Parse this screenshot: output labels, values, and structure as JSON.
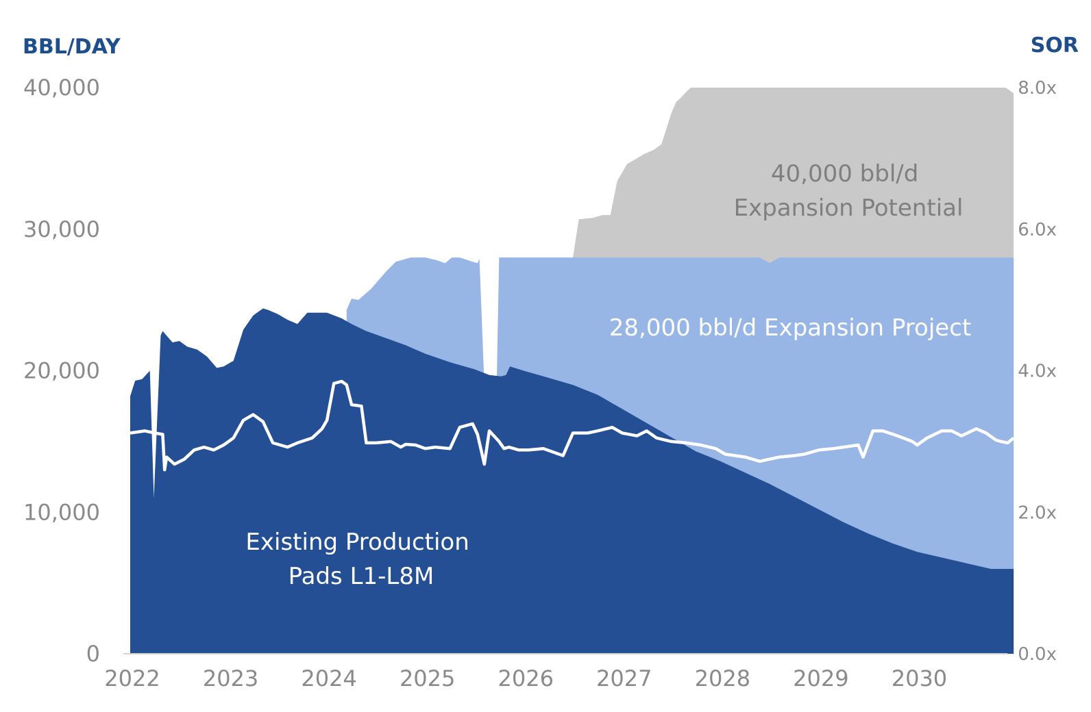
{
  "chart_data": {
    "type": "area",
    "left_axis": {
      "title": "BBL/DAY",
      "ticks": [
        "0",
        "10,000",
        "20,000",
        "30,000",
        "40,000"
      ],
      "tick_values": [
        0,
        10000,
        20000,
        30000,
        40000
      ],
      "ylim": [
        0,
        40000
      ]
    },
    "right_axis": {
      "title": "SOR",
      "ticks": [
        "0.0x",
        "2.0x",
        "4.0x",
        "6.0x",
        "8.0x"
      ],
      "tick_values": [
        0,
        2,
        4,
        6,
        8
      ],
      "ylim": [
        0,
        8
      ]
    },
    "x_axis": {
      "ticks": [
        "2022",
        "2023",
        "2024",
        "2025",
        "2026",
        "2027",
        "2028",
        "2029",
        "2030"
      ],
      "tick_values": [
        2022,
        2023,
        2024,
        2025,
        2026,
        2027,
        2028,
        2029,
        2030
      ],
      "xlim": [
        2022,
        2031
      ]
    },
    "labels": {
      "existing": [
        "Existing Production",
        "Pads L1-L8M"
      ],
      "expansion_project": [
        "28,000 bbl/d Expansion Project"
      ],
      "expansion_potential": [
        "40,000 bbl/d",
        "Expansion Potential"
      ]
    },
    "colors": {
      "existing": "#244f94",
      "expansion_project": "#97b6e5",
      "expansion_potential": "#c9c9c9",
      "sor_line": "#ffffff",
      "axis_title": "#1f4e8c",
      "tick_text": "#8a8a8a",
      "axis_line": "#d6d6d6"
    },
    "series": [
      {
        "name": "Existing Production Pads L1-L8M",
        "axis": "left",
        "x": [
          2022.0,
          2022.05,
          2022.12,
          2022.2,
          2022.24,
          2022.31,
          2022.33,
          2022.43,
          2022.5,
          2022.58,
          2022.68,
          2022.78,
          2022.88,
          2022.95,
          2023.05,
          2023.15,
          2023.25,
          2023.35,
          2023.4,
          2023.5,
          2023.6,
          2023.7,
          2023.8,
          2023.9,
          2024.0,
          2024.15,
          2024.25,
          2024.4,
          2024.6,
          2024.8,
          2025.0,
          2025.25,
          2025.5,
          2025.65,
          2025.77,
          2025.82,
          2025.86,
          2026.0,
          2026.25,
          2026.5,
          2026.75,
          2027.0,
          2027.25,
          2027.5,
          2027.75,
          2028.0,
          2028.25,
          2028.5,
          2028.75,
          2029.0,
          2029.25,
          2029.5,
          2029.75,
          2030.0,
          2030.25,
          2030.5,
          2030.75,
          2030.98
        ],
        "values": [
          18200,
          19300,
          19400,
          20000,
          11000,
          22500,
          22800,
          22000,
          22100,
          21700,
          21500,
          21000,
          20200,
          20300,
          20700,
          22900,
          23900,
          24400,
          24300,
          24000,
          23600,
          23300,
          24100,
          24100,
          24100,
          23700,
          23300,
          22800,
          22300,
          21800,
          21200,
          20600,
          20100,
          19700,
          19600,
          19700,
          20300,
          20000,
          19500,
          19000,
          18300,
          17300,
          16300,
          15300,
          14300,
          13600,
          12800,
          12000,
          11100,
          10200,
          9300,
          8500,
          7800,
          7200,
          6800,
          6400,
          6000,
          6000
        ]
      },
      {
        "name": "28,000 bbl/d Expansion Project",
        "axis": "left",
        "x": [
          2024.2,
          2024.25,
          2024.32,
          2024.45,
          2024.6,
          2024.7,
          2024.85,
          2025.0,
          2025.12,
          2025.2,
          2025.27,
          2025.35,
          2025.48,
          2025.53,
          2025.55,
          2025.65,
          2025.7,
          2025.75,
          2025.85,
          2026.0,
          2026.5,
          2027.0,
          2027.5,
          2028.0,
          2028.4,
          2028.5,
          2028.6,
          2029.0,
          2030.0,
          2030.98
        ],
        "values": [
          24300,
          25100,
          25000,
          25800,
          27000,
          27700,
          28000,
          28000,
          27800,
          27600,
          28000,
          28000,
          27700,
          27600,
          27900,
          10000,
          10000,
          28000,
          28000,
          28000,
          28000,
          28000,
          28000,
          28000,
          28000,
          27600,
          28000,
          28000,
          28000,
          28000
        ]
      },
      {
        "name": "40,000 bbl/d Expansion Potential",
        "axis": "left",
        "x": [
          2026.5,
          2026.56,
          2026.7,
          2026.8,
          2026.88,
          2026.95,
          2027.05,
          2027.15,
          2027.22,
          2027.32,
          2027.4,
          2027.5,
          2027.55,
          2027.6,
          2027.65,
          2027.7,
          2027.8,
          2028.0,
          2029.0,
          2030.0,
          2030.9,
          2030.98
        ],
        "values": [
          28000,
          30700,
          30800,
          31000,
          31000,
          33400,
          34600,
          35000,
          35300,
          35600,
          36000,
          38200,
          39000,
          39300,
          39700,
          40000,
          40000,
          40000,
          40000,
          40000,
          40000,
          39600
        ]
      },
      {
        "name": "SOR",
        "axis": "right",
        "x": [
          2022.0,
          2022.15,
          2022.25,
          2022.33,
          2022.35,
          2022.37,
          2022.45,
          2022.55,
          2022.65,
          2022.75,
          2022.85,
          2022.95,
          2023.05,
          2023.15,
          2023.25,
          2023.35,
          2023.45,
          2023.6,
          2023.7,
          2023.85,
          2023.95,
          2024.0,
          2024.07,
          2024.15,
          2024.2,
          2024.25,
          2024.35,
          2024.4,
          2024.5,
          2024.65,
          2024.75,
          2024.8,
          2024.9,
          2025.0,
          2025.1,
          2025.25,
          2025.35,
          2025.48,
          2025.53,
          2025.6,
          2025.65,
          2025.75,
          2025.8,
          2025.85,
          2025.95,
          2026.05,
          2026.2,
          2026.4,
          2026.5,
          2026.65,
          2026.75,
          2026.9,
          2027.0,
          2027.15,
          2027.25,
          2027.35,
          2027.5,
          2027.65,
          2027.8,
          2027.95,
          2028.05,
          2028.15,
          2028.25,
          2028.4,
          2028.5,
          2028.6,
          2028.75,
          2028.85,
          2029.0,
          2029.15,
          2029.25,
          2029.4,
          2029.45,
          2029.55,
          2029.65,
          2029.8,
          2029.95,
          2030.0,
          2030.1,
          2030.25,
          2030.35,
          2030.45,
          2030.6,
          2030.7,
          2030.8,
          2030.85,
          2030.92,
          2030.98
        ],
        "values": [
          3.12,
          3.15,
          3.12,
          3.1,
          2.6,
          2.78,
          2.68,
          2.75,
          2.88,
          2.92,
          2.88,
          2.95,
          3.05,
          3.3,
          3.38,
          3.28,
          2.98,
          2.92,
          2.98,
          3.05,
          3.18,
          3.3,
          3.82,
          3.85,
          3.8,
          3.52,
          3.5,
          2.98,
          2.98,
          3.0,
          2.92,
          2.96,
          2.95,
          2.9,
          2.92,
          2.9,
          3.2,
          3.25,
          3.1,
          2.68,
          3.15,
          3.0,
          2.9,
          2.92,
          2.88,
          2.88,
          2.9,
          2.8,
          3.12,
          3.12,
          3.15,
          3.2,
          3.12,
          3.08,
          3.15,
          3.05,
          3.0,
          2.98,
          2.95,
          2.9,
          2.82,
          2.8,
          2.78,
          2.72,
          2.75,
          2.78,
          2.8,
          2.82,
          2.88,
          2.9,
          2.92,
          2.95,
          2.78,
          3.15,
          3.15,
          3.08,
          3.0,
          2.95,
          3.05,
          3.15,
          3.15,
          3.08,
          3.18,
          3.12,
          3.02,
          3.0,
          2.98,
          3.05
        ]
      }
    ]
  }
}
